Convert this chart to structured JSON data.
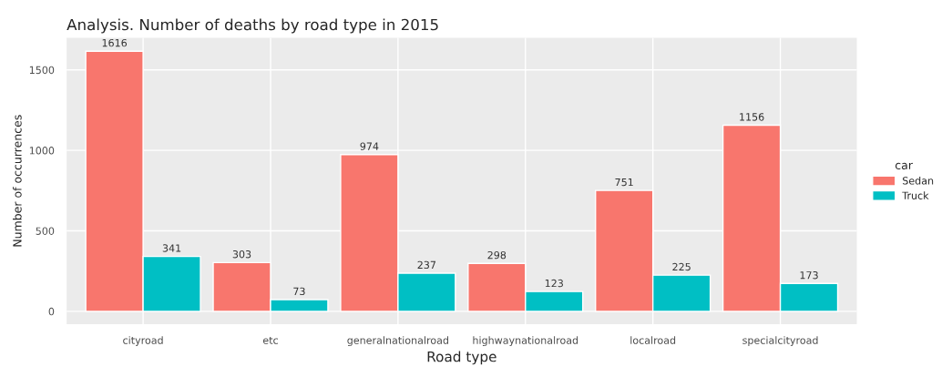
{
  "chart_data": {
    "type": "bar",
    "title": "Analysis. Number of deaths by road type in 2015",
    "xlabel": "Road type",
    "ylabel": "Number of occurrences",
    "legend_title": "car",
    "categories": [
      "cityroad",
      "etc",
      "generalnationalroad",
      "highwaynationalroad",
      "localroad",
      "specialcityroad"
    ],
    "series": [
      {
        "name": "Sedan",
        "color": "#f8766d",
        "values": [
          1616,
          303,
          974,
          298,
          751,
          1156
        ]
      },
      {
        "name": "Truck",
        "color": "#00bfc4",
        "values": [
          341,
          73,
          237,
          123,
          225,
          173
        ]
      }
    ],
    "ylim": [
      -80,
      1700
    ],
    "yticks": [
      0,
      500,
      1000,
      1500
    ],
    "grid": true,
    "legend": "right",
    "data_labels": true
  }
}
